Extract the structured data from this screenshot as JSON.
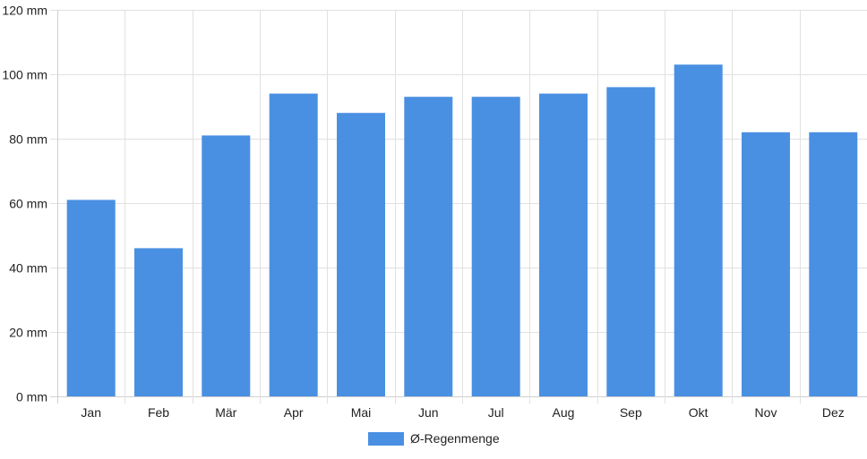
{
  "chart_data": {
    "type": "bar",
    "categories": [
      "Jan",
      "Feb",
      "Mär",
      "Apr",
      "Mai",
      "Jun",
      "Jul",
      "Aug",
      "Sep",
      "Okt",
      "Nov",
      "Dez"
    ],
    "series": [
      {
        "name": "Ø-Regenmenge",
        "values": [
          61,
          46,
          81,
          94,
          88,
          93,
          93,
          94,
          96,
          103,
          82,
          82
        ],
        "color": "#4a90e2"
      }
    ],
    "ylim": [
      0,
      120
    ],
    "y_ticks": [
      0,
      20,
      40,
      60,
      80,
      100,
      120
    ],
    "y_tick_unit": "mm",
    "grid": true,
    "legend_position": "bottom-center"
  }
}
